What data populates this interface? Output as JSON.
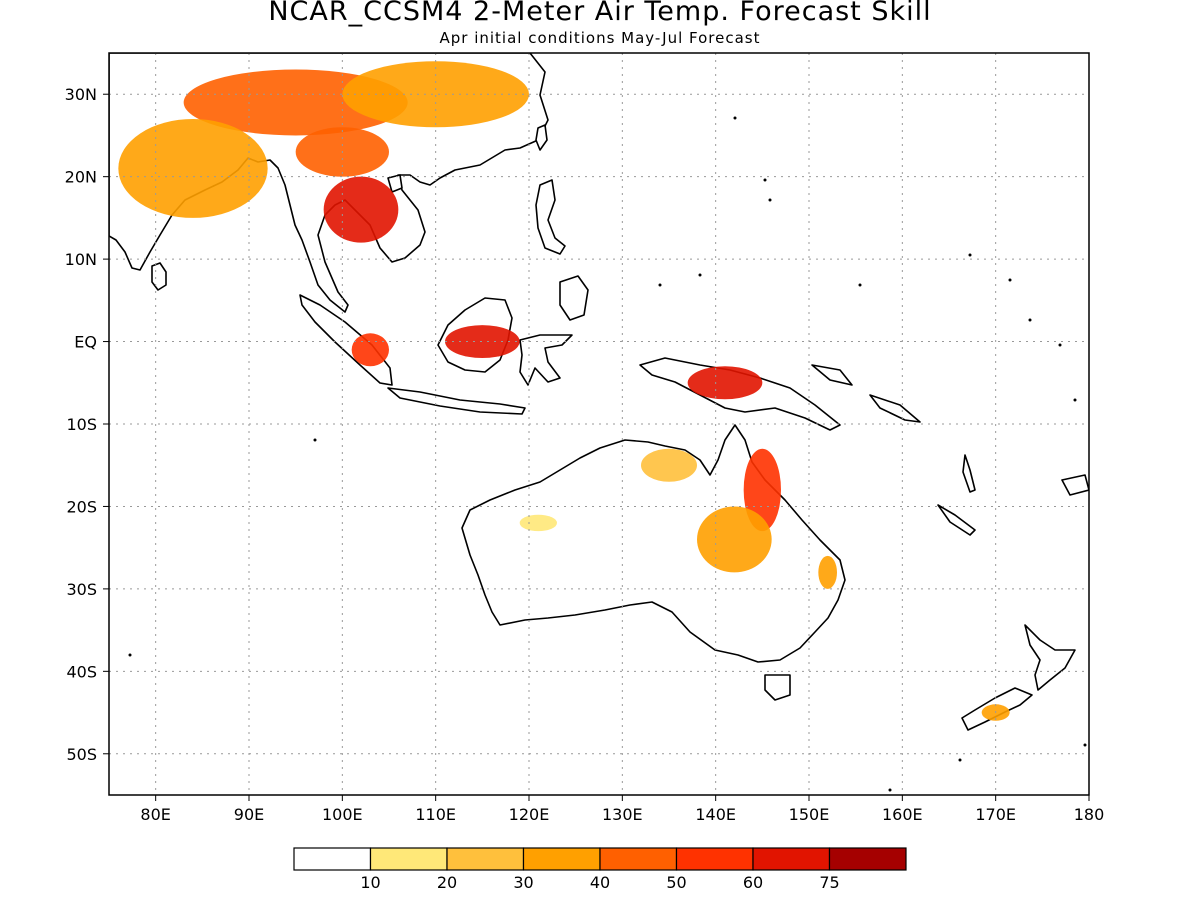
{
  "title": "NCAR_CCSM4 2-Meter Air Temp. Forecast Skill",
  "subtitle": "Apr initial conditions  May-Jul Forecast",
  "map": {
    "lon_range": [
      75,
      180
    ],
    "lat_range": [
      -55,
      35
    ],
    "lat_ticks": [
      {
        "value": 30,
        "label": "30N"
      },
      {
        "value": 20,
        "label": "20N"
      },
      {
        "value": 10,
        "label": "10N"
      },
      {
        "value": 0,
        "label": "EQ"
      },
      {
        "value": -10,
        "label": "10S"
      },
      {
        "value": -20,
        "label": "20S"
      },
      {
        "value": -30,
        "label": "30S"
      },
      {
        "value": -40,
        "label": "40S"
      },
      {
        "value": -50,
        "label": "50S"
      }
    ],
    "lon_ticks": [
      {
        "value": 80,
        "label": "80E"
      },
      {
        "value": 90,
        "label": "90E"
      },
      {
        "value": 100,
        "label": "100E"
      },
      {
        "value": 110,
        "label": "110E"
      },
      {
        "value": 120,
        "label": "120E"
      },
      {
        "value": 130,
        "label": "130E"
      },
      {
        "value": 140,
        "label": "140E"
      },
      {
        "value": 150,
        "label": "150E"
      },
      {
        "value": 160,
        "label": "160E"
      },
      {
        "value": 170,
        "label": "170E"
      },
      {
        "value": 180,
        "label": "180"
      }
    ],
    "grid": true
  },
  "colorbar": {
    "colors": [
      "#ffffff",
      "#ffe878",
      "#ffc03c",
      "#ffa000",
      "#ff6000",
      "#ff3200",
      "#e11400",
      "#a50000"
    ],
    "labels": [
      "10",
      "20",
      "30",
      "40",
      "50",
      "60",
      "75"
    ]
  },
  "skill_regions": [
    {
      "lon": 95,
      "lat": 29,
      "level": 4,
      "rx": 12,
      "ry": 4
    },
    {
      "lon": 110,
      "lat": 30,
      "level": 3,
      "rx": 10,
      "ry": 4
    },
    {
      "lon": 84,
      "lat": 21,
      "level": 3,
      "rx": 8,
      "ry": 6
    },
    {
      "lon": 102,
      "lat": 16,
      "level": 6,
      "rx": 4,
      "ry": 4
    },
    {
      "lon": 100,
      "lat": 23,
      "level": 4,
      "rx": 5,
      "ry": 3
    },
    {
      "lon": 115,
      "lat": 0,
      "level": 6,
      "rx": 4,
      "ry": 2
    },
    {
      "lon": 103,
      "lat": -1,
      "level": 5,
      "rx": 2,
      "ry": 2
    },
    {
      "lon": 141,
      "lat": -5,
      "level": 6,
      "rx": 4,
      "ry": 2
    },
    {
      "lon": 145,
      "lat": -18,
      "level": 5,
      "rx": 2,
      "ry": 5
    },
    {
      "lon": 142,
      "lat": -24,
      "level": 3,
      "rx": 4,
      "ry": 4
    },
    {
      "lon": 135,
      "lat": -15,
      "level": 2,
      "rx": 3,
      "ry": 2
    },
    {
      "lon": 121,
      "lat": -22,
      "level": 1,
      "rx": 2,
      "ry": 1
    },
    {
      "lon": 152,
      "lat": -28,
      "level": 3,
      "rx": 1,
      "ry": 2
    },
    {
      "lon": 170,
      "lat": -45,
      "level": 3,
      "rx": 1.5,
      "ry": 1
    }
  ]
}
